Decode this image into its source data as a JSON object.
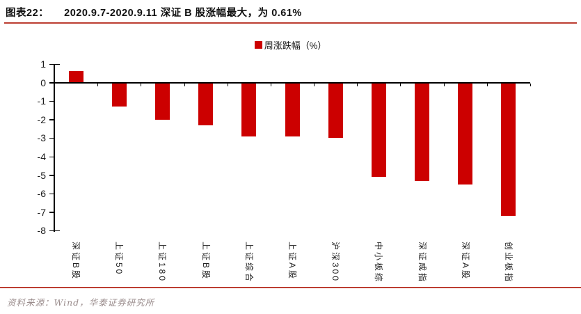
{
  "header": {
    "figure_label": "图表22："
  },
  "legend": {
    "label": "周涨跌幅（%）"
  },
  "chart_data": {
    "type": "bar",
    "title": "2020.9.7-2020.9.11 深证 B 股涨幅最大，为 0.61%",
    "categories": [
      "深证B股",
      "上证50",
      "上证180",
      "上证B股",
      "上证综合",
      "上证A股",
      "沪深300",
      "中小板综",
      "深证成指",
      "深证A股",
      "创业板指"
    ],
    "series": [
      {
        "name": "周涨跌幅（%）",
        "values": [
          0.61,
          -1.3,
          -2.0,
          -2.3,
          -2.9,
          -2.9,
          -3.0,
          -5.1,
          -5.3,
          -5.5,
          -7.2
        ]
      }
    ],
    "xlabel": "",
    "ylabel": "周涨跌幅（%）",
    "ylim": [
      -8,
      1
    ],
    "yticks": [
      1,
      0,
      -1,
      -2,
      -3,
      -4,
      -5,
      -6,
      -7,
      -8
    ],
    "grid": false,
    "legend_position": "top-center",
    "bar_color": "#cc0000",
    "axis_color": "#000000"
  },
  "footer": {
    "source": "资料来源：Wind，华泰证券研究所"
  },
  "colors": {
    "accent_red": "#bc3e32",
    "bar_red": "#cc0000",
    "footer_text": "#9a8c8c"
  }
}
